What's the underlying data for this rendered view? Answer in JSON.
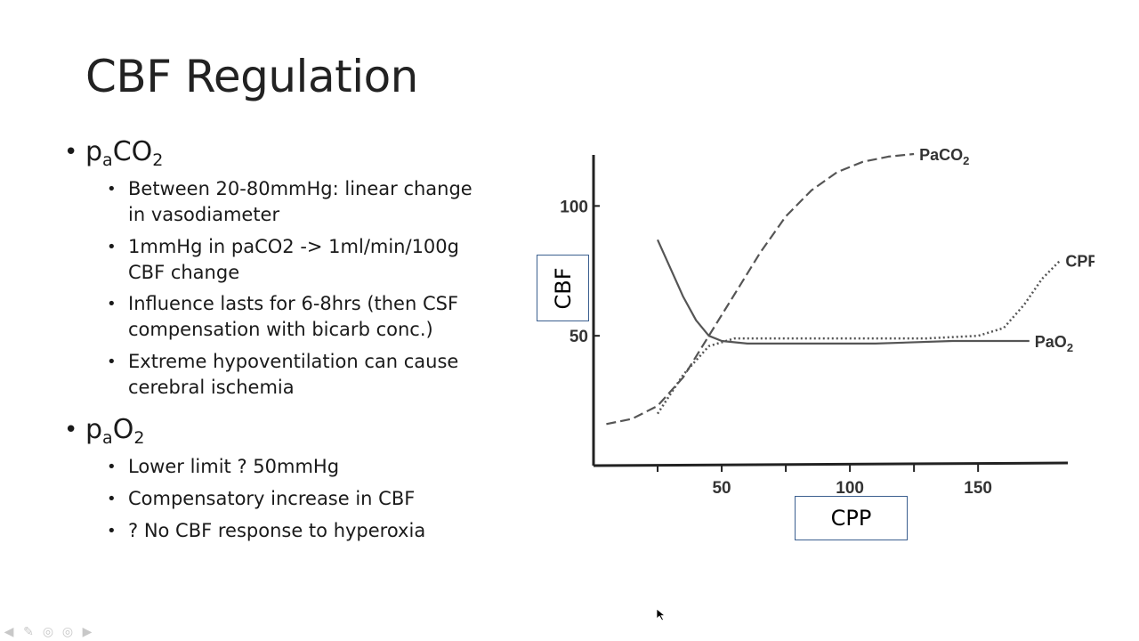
{
  "slide": {
    "title": "CBF Regulation",
    "sections": [
      {
        "heading_base": "p",
        "heading_sub": "a",
        "heading_mid": "CO",
        "heading_sub2": "2",
        "items": [
          "Between 20-80mmHg: linear change in vasodiameter",
          "1mmHg in paCO2 -> 1ml/min/100g CBF change",
          "Influence lasts for 6-8hrs (then CSF compensation with bicarb conc.)",
          "Extreme hypoventilation can cause cerebral ischemia"
        ]
      },
      {
        "heading_base": "p",
        "heading_sub": "a",
        "heading_mid": "O",
        "heading_sub2": "2",
        "items": [
          "Lower limit ? 50mmHg",
          "Compensatory increase in CBF",
          "? No CBF response to hyperoxia"
        ]
      }
    ],
    "ylabel_box": "CBF",
    "xlabel_box": "CPP"
  },
  "chart_data": {
    "type": "line",
    "xticks": [
      "50",
      "100",
      "150"
    ],
    "yticks": [
      "50",
      "100"
    ],
    "xlim": [
      0,
      185
    ],
    "ylim": [
      0,
      120
    ],
    "series": [
      {
        "name": "PaCO2",
        "style": "dashed",
        "x": [
          5,
          15,
          25,
          35,
          45,
          55,
          65,
          75,
          85,
          95,
          105,
          115,
          125
        ],
        "y": [
          16,
          18,
          23,
          34,
          50,
          66,
          82,
          96,
          106,
          113,
          117,
          119,
          120
        ]
      },
      {
        "name": "CPP",
        "style": "dotted",
        "x": [
          25,
          35,
          45,
          55,
          70,
          90,
          110,
          130,
          150,
          160,
          168,
          175,
          182
        ],
        "y": [
          20,
          35,
          46,
          49,
          49,
          49,
          49,
          49,
          50,
          53,
          62,
          72,
          79
        ]
      },
      {
        "name": "PaO2",
        "style": "solid",
        "x": [
          25,
          30,
          35,
          40,
          45,
          50,
          60,
          80,
          110,
          140,
          170
        ],
        "y": [
          87,
          76,
          65,
          56,
          50,
          48,
          47,
          47,
          47,
          48,
          48
        ]
      }
    ],
    "series_labels": [
      {
        "base": "PaCO",
        "sub": "2"
      },
      {
        "base": "CPP",
        "sub": ""
      },
      {
        "base": "PaO",
        "sub": "2"
      }
    ],
    "line_color": "#555555"
  }
}
